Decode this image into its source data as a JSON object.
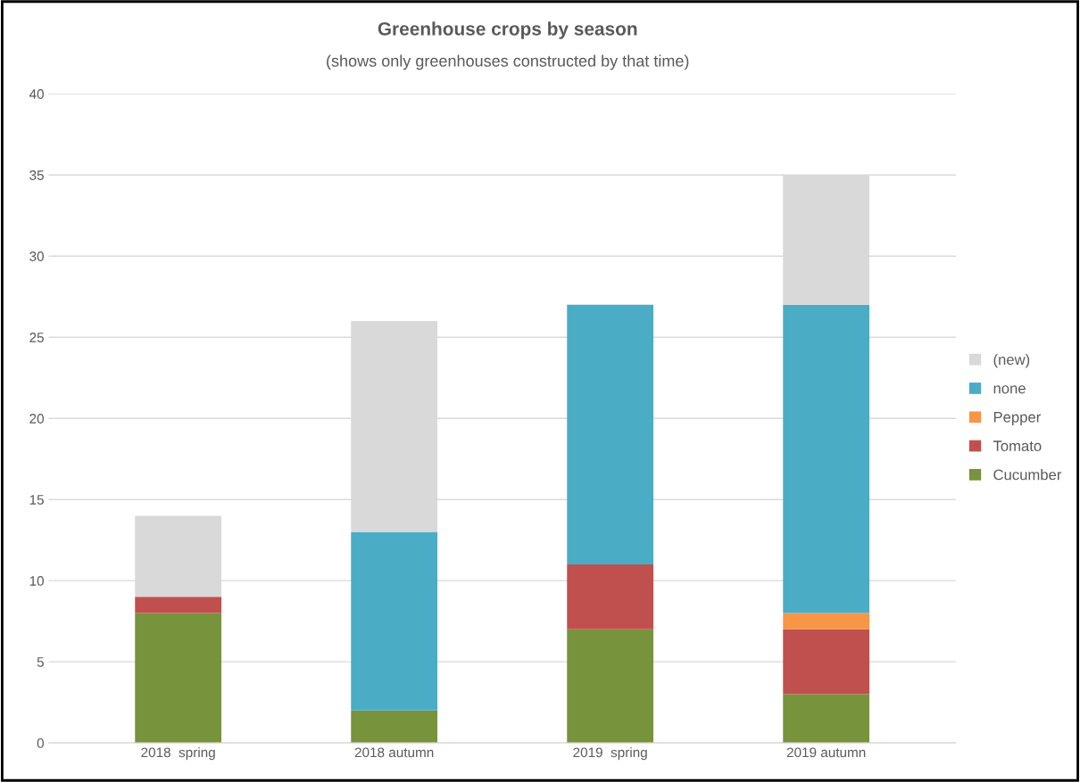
{
  "chart_data": {
    "type": "bar",
    "stacked": true,
    "title": "Greenhouse crops by season",
    "subtitle": "(shows only greenhouses constructed by that time)",
    "categories": [
      "2018  spring",
      "2018 autumn",
      "2019  spring",
      "2019 autumn"
    ],
    "series": [
      {
        "name": "Cucumber",
        "color": "#77933c",
        "values": [
          8,
          2,
          7,
          3
        ]
      },
      {
        "name": "Tomato",
        "color": "#c0504d",
        "values": [
          1,
          0,
          4,
          4
        ]
      },
      {
        "name": "Pepper",
        "color": "#f79646",
        "values": [
          0,
          0,
          0,
          1
        ]
      },
      {
        "name": "none",
        "color": "#4bacc6",
        "values": [
          0,
          11,
          16,
          19
        ]
      },
      {
        "name": "(new)",
        "color": "#d9d9d9",
        "values": [
          5,
          13,
          0,
          8
        ]
      }
    ],
    "ylim": [
      0,
      40
    ],
    "yticks": [
      0,
      5,
      10,
      15,
      20,
      25,
      30,
      35,
      40
    ],
    "grid": "y",
    "legend": "right"
  }
}
